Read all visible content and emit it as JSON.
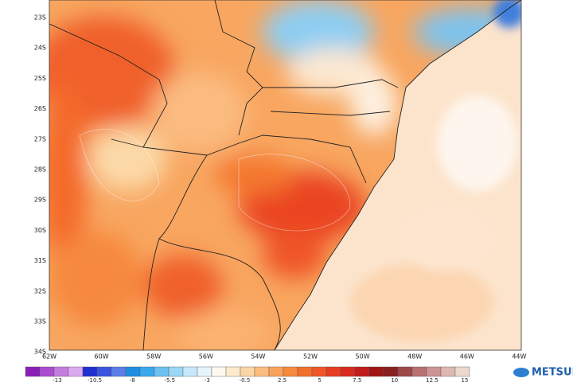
{
  "map": {
    "lat_labels": [
      "23S",
      "24S",
      "25S",
      "26S",
      "27S",
      "28S",
      "29S",
      "30S",
      "31S",
      "32S",
      "33S",
      "34S"
    ],
    "lon_labels": [
      "62W",
      "60W",
      "58W",
      "56W",
      "54W",
      "52W",
      "50W",
      "48W",
      "46W",
      "44W"
    ],
    "colorbar_labels": [
      "-13",
      "-10.5",
      "-8",
      "-5.5",
      "-3",
      "-0.5",
      "2.5",
      "5",
      "7.5",
      "10",
      "12.5",
      "15"
    ],
    "logo": "METSUL"
  }
}
